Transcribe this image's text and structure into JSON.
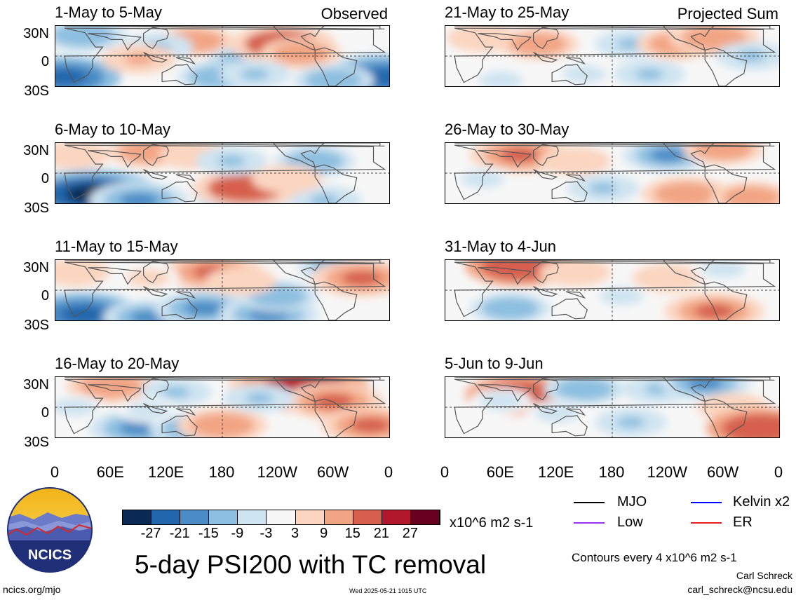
{
  "column_labels": {
    "left": "Observed",
    "right": "Projected Sum"
  },
  "lat_labels": [
    "30N",
    "0",
    "30S"
  ],
  "lon_labels": [
    "0",
    "60E",
    "120E",
    "180",
    "120W",
    "60W",
    "0"
  ],
  "colorbar": {
    "ticks": [
      "-27",
      "-21",
      "-15",
      "-9",
      "-3",
      "3",
      "9",
      "15",
      "21",
      "27"
    ],
    "units": "x10^6 m2 s-1",
    "colors": [
      "#0a2a55",
      "#2166ac",
      "#4a8cc6",
      "#8dbfe0",
      "#cfe4f1",
      "#f7f7f7",
      "#fbd5c0",
      "#f2a584",
      "#d6604d",
      "#b2182b",
      "#67001f"
    ]
  },
  "title": "5-day PSI200 with TC removal",
  "legend": {
    "items": [
      {
        "label": "MJO",
        "color": "#000000"
      },
      {
        "label": "Kelvin x2",
        "color": "#0000ff"
      },
      {
        "label": "Low",
        "color": "#9b30ff"
      },
      {
        "label": "ER",
        "color": "#e02020"
      }
    ],
    "contour_note": "Contours every 4 x10^6 m2 s-1"
  },
  "footer": {
    "url": "ncics.org/mjo",
    "timestamp": "Wed 2025-05-21 1015 UTC",
    "author": "Carl Schreck",
    "email": "carl_schreck@ncsu.edu",
    "logo_text": "NCICS"
  },
  "chart_data": [
    {
      "type": "heatmap",
      "title": "1-May to 5-May",
      "group": "Observed",
      "blobs": [
        [
          30,
          0.15,
          -14
        ],
        [
          355,
          0.85,
          -25
        ],
        [
          10,
          0.85,
          -22
        ],
        [
          150,
          0.25,
          12
        ],
        [
          205,
          0.6,
          -12
        ],
        [
          245,
          0.3,
          20
        ],
        [
          265,
          0.45,
          12
        ],
        [
          110,
          0.35,
          -9
        ],
        [
          175,
          0.85,
          -12
        ],
        [
          215,
          0.8,
          -9
        ],
        [
          90,
          0.55,
          10
        ],
        [
          300,
          0.9,
          -12
        ]
      ]
    },
    {
      "type": "heatmap",
      "title": "6-May to 10-May",
      "group": "Observed",
      "blobs": [
        [
          40,
          0.85,
          -30
        ],
        [
          90,
          0.95,
          -18
        ],
        [
          200,
          0.95,
          -15
        ],
        [
          290,
          0.95,
          -10
        ],
        [
          20,
          0.2,
          9
        ],
        [
          100,
          0.15,
          12
        ],
        [
          150,
          0.2,
          9
        ],
        [
          205,
          0.75,
          20
        ],
        [
          190,
          0.3,
          -9
        ],
        [
          280,
          0.3,
          -12
        ],
        [
          250,
          0.6,
          9
        ]
      ]
    },
    {
      "type": "heatmap",
      "title": "11-May to 15-May",
      "group": "Observed",
      "blobs": [
        [
          30,
          0.9,
          -24
        ],
        [
          100,
          0.95,
          -15
        ],
        [
          160,
          0.8,
          -18
        ],
        [
          230,
          0.9,
          -18
        ],
        [
          170,
          0.2,
          18
        ],
        [
          310,
          0.1,
          -15
        ],
        [
          330,
          0.3,
          18
        ],
        [
          240,
          0.6,
          -12
        ],
        [
          100,
          0.3,
          6
        ],
        [
          200,
          0.35,
          9
        ],
        [
          20,
          0.2,
          9
        ]
      ]
    },
    {
      "type": "heatmap",
      "title": "16-May to 20-May",
      "group": "Observed",
      "blobs": [
        [
          60,
          0.15,
          15
        ],
        [
          130,
          0.25,
          -9
        ],
        [
          90,
          0.85,
          -18
        ],
        [
          150,
          0.85,
          -15
        ],
        [
          180,
          0.8,
          15
        ],
        [
          240,
          0.1,
          18
        ],
        [
          270,
          0.2,
          27
        ],
        [
          300,
          0.4,
          18
        ],
        [
          220,
          0.35,
          -9
        ],
        [
          340,
          0.8,
          18
        ],
        [
          20,
          0.5,
          -6
        ],
        [
          100,
          0.55,
          -6
        ]
      ]
    },
    {
      "type": "heatmap",
      "title": "21-May to 25-May",
      "group": "Projected Sum",
      "blobs": [
        [
          40,
          0.2,
          9
        ],
        [
          100,
          0.3,
          12
        ],
        [
          200,
          0.3,
          -9
        ],
        [
          250,
          0.3,
          12
        ],
        [
          290,
          0.2,
          15
        ],
        [
          330,
          0.5,
          -9
        ],
        [
          150,
          0.8,
          -6
        ],
        [
          220,
          0.8,
          -9
        ],
        [
          60,
          0.9,
          -6
        ]
      ]
    },
    {
      "type": "heatmap",
      "title": "26-May to 30-May",
      "group": "Projected Sum",
      "blobs": [
        [
          80,
          0.2,
          18
        ],
        [
          140,
          0.3,
          9
        ],
        [
          240,
          0.2,
          -15
        ],
        [
          300,
          0.1,
          12
        ],
        [
          260,
          0.85,
          15
        ],
        [
          330,
          0.9,
          12
        ],
        [
          170,
          0.75,
          -9
        ],
        [
          40,
          0.6,
          -6
        ]
      ]
    },
    {
      "type": "heatmap",
      "title": "31-May to 4-Jun",
      "group": "Projected Sum",
      "blobs": [
        [
          80,
          0.1,
          21
        ],
        [
          140,
          0.2,
          9
        ],
        [
          240,
          0.3,
          9
        ],
        [
          300,
          0.15,
          -6
        ],
        [
          70,
          0.8,
          -12
        ],
        [
          290,
          0.85,
          18
        ],
        [
          190,
          0.6,
          -6
        ]
      ]
    },
    {
      "type": "heatmap",
      "title": "5-Jun to 9-Jun",
      "group": "Projected Sum",
      "blobs": [
        [
          80,
          0.3,
          21
        ],
        [
          150,
          0.2,
          -12
        ],
        [
          230,
          0.2,
          -9
        ],
        [
          280,
          0.1,
          -15
        ],
        [
          310,
          0.5,
          9
        ],
        [
          340,
          0.85,
          21
        ],
        [
          200,
          0.75,
          -9
        ],
        [
          60,
          0.4,
          -6
        ],
        [
          120,
          0.6,
          -6
        ]
      ]
    }
  ]
}
